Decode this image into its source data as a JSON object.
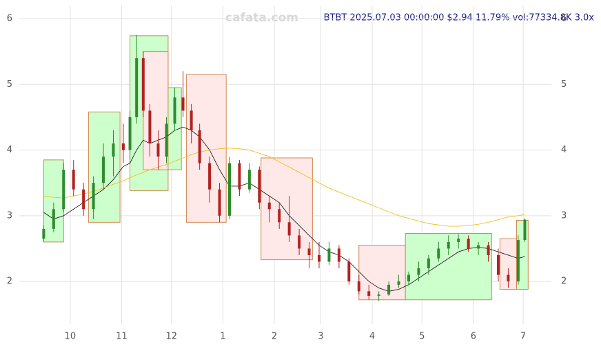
{
  "chart_data": {
    "type": "candlestick",
    "title": "BTBT 2025.07.03 00:00:00 $2.94 11.79% vol:77334.8K 3.0x",
    "watermark": "cafata.com",
    "grid": true,
    "xlim": [
      -0.7,
      320
    ],
    "xticks": [
      {
        "value": 30,
        "label": "10"
      },
      {
        "value": 61,
        "label": "11"
      },
      {
        "value": 91,
        "label": "12"
      },
      {
        "value": 122,
        "label": "1"
      },
      {
        "value": 153,
        "label": "2"
      },
      {
        "value": 181,
        "label": "3"
      },
      {
        "value": 212,
        "label": "4"
      },
      {
        "value": 242,
        "label": "5"
      },
      {
        "value": 273,
        "label": "6"
      },
      {
        "value": 303,
        "label": "7"
      }
    ],
    "ylim": [
      1.35,
      6.2
    ],
    "yticks": [
      2,
      3,
      4,
      5,
      6
    ],
    "up_color": "#2e8b2e",
    "down_color": "#b22222",
    "x": [
      14,
      20,
      26,
      32,
      38,
      44,
      50,
      56,
      62,
      66,
      70,
      74,
      78,
      83,
      88,
      93,
      98,
      103,
      108,
      114,
      120,
      126,
      132,
      138,
      144,
      150,
      156,
      162,
      168,
      174,
      180,
      186,
      192,
      198,
      204,
      210,
      216,
      222,
      228,
      234,
      240,
      246,
      252,
      258,
      264,
      270,
      276,
      282,
      288,
      294,
      300,
      304
    ],
    "open": [
      2.65,
      2.8,
      3.1,
      3.7,
      3.4,
      3.1,
      3.5,
      3.9,
      4.1,
      4.0,
      4.5,
      5.4,
      4.6,
      4.1,
      3.9,
      4.4,
      4.8,
      4.6,
      4.3,
      3.8,
      3.4,
      3.0,
      3.8,
      3.4,
      3.7,
      3.2,
      3.1,
      2.9,
      2.7,
      2.5,
      2.4,
      2.3,
      2.5,
      2.3,
      2.0,
      1.85,
      1.78,
      1.8,
      1.95,
      2.0,
      2.1,
      2.2,
      2.35,
      2.5,
      2.6,
      2.65,
      2.5,
      2.55,
      2.4,
      2.1,
      2.0,
      2.63
    ],
    "high": [
      2.85,
      3.2,
      3.8,
      3.85,
      3.5,
      3.6,
      4.1,
      4.3,
      4.4,
      4.6,
      5.75,
      5.5,
      4.7,
      4.3,
      4.5,
      4.95,
      5.2,
      4.7,
      4.4,
      3.9,
      3.5,
      3.9,
      3.85,
      3.8,
      3.75,
      3.3,
      3.2,
      3.3,
      2.8,
      2.6,
      2.6,
      2.6,
      2.55,
      2.35,
      2.1,
      1.95,
      1.85,
      2.0,
      2.1,
      2.15,
      2.3,
      2.4,
      2.6,
      2.7,
      2.72,
      2.7,
      2.6,
      2.6,
      2.5,
      2.2,
      2.7,
      2.96
    ],
    "low": [
      2.6,
      2.75,
      3.05,
      3.3,
      3.0,
      2.95,
      3.4,
      3.6,
      3.8,
      3.85,
      4.4,
      4.5,
      3.9,
      3.7,
      3.8,
      4.3,
      4.5,
      4.1,
      3.7,
      3.2,
      2.9,
      2.95,
      3.3,
      3.35,
      3.1,
      2.9,
      2.8,
      2.6,
      2.4,
      2.2,
      2.2,
      2.25,
      2.2,
      1.95,
      1.8,
      1.72,
      1.7,
      1.78,
      1.9,
      1.95,
      2.0,
      2.1,
      2.3,
      2.4,
      2.5,
      2.45,
      2.4,
      2.3,
      2.0,
      1.9,
      1.95,
      2.6
    ],
    "close": [
      2.8,
      3.1,
      3.7,
      3.4,
      3.1,
      3.5,
      3.9,
      4.1,
      4.0,
      4.5,
      5.4,
      4.6,
      4.1,
      3.9,
      4.4,
      4.8,
      4.6,
      4.3,
      3.8,
      3.4,
      3.0,
      3.8,
      3.4,
      3.7,
      3.2,
      3.1,
      2.9,
      2.7,
      2.5,
      2.4,
      2.3,
      2.5,
      2.3,
      2.0,
      1.85,
      1.78,
      1.8,
      1.95,
      2.0,
      2.1,
      2.2,
      2.35,
      2.5,
      2.6,
      2.65,
      2.5,
      2.55,
      2.4,
      2.1,
      2.0,
      2.63,
      2.94
    ],
    "lines": [
      {
        "color": "#222222",
        "values": [
          3.05,
          2.95,
          3.0,
          3.1,
          3.2,
          3.3,
          3.4,
          3.55,
          3.75,
          3.8,
          4.0,
          4.15,
          4.1,
          4.15,
          4.2,
          4.3,
          4.35,
          4.3,
          4.2,
          4.0,
          3.7,
          3.45,
          3.45,
          3.5,
          3.4,
          3.3,
          3.2,
          3.0,
          2.85,
          2.7,
          2.55,
          2.45,
          2.4,
          2.3,
          2.15,
          2.0,
          1.9,
          1.85,
          1.88,
          1.95,
          2.05,
          2.15,
          2.25,
          2.35,
          2.45,
          2.5,
          2.52,
          2.5,
          2.45,
          2.4,
          2.35,
          2.38
        ]
      },
      {
        "color": "#f0c020",
        "values": [
          3.3,
          3.28,
          3.27,
          3.3,
          3.33,
          3.37,
          3.42,
          3.48,
          3.53,
          3.58,
          3.62,
          3.66,
          3.7,
          3.74,
          3.78,
          3.83,
          3.88,
          3.93,
          3.97,
          4.0,
          4.02,
          4.03,
          4.02,
          4.0,
          3.95,
          3.9,
          3.82,
          3.74,
          3.66,
          3.58,
          3.5,
          3.42,
          3.36,
          3.3,
          3.24,
          3.18,
          3.12,
          3.06,
          3.0,
          2.96,
          2.92,
          2.88,
          2.86,
          2.84,
          2.84,
          2.85,
          2.87,
          2.9,
          2.94,
          2.98,
          3.0,
          3.02
        ]
      }
    ],
    "zones": [
      {
        "x0": 14,
        "x1": 26,
        "y0": 2.6,
        "y1": 3.85,
        "color": "#ccffcc"
      },
      {
        "x0": 41,
        "x1": 60,
        "y0": 2.9,
        "y1": 4.58,
        "color": "#ccffcc"
      },
      {
        "x0": 66,
        "x1": 89,
        "y0": 3.38,
        "y1": 5.74,
        "color": "#ccffcc"
      },
      {
        "x0": 74,
        "x1": 89,
        "y0": 3.7,
        "y1": 5.5,
        "color": "#ffe8e8"
      },
      {
        "x0": 89,
        "x1": 97,
        "y0": 3.7,
        "y1": 4.95,
        "color": "#ccffcc"
      },
      {
        "x0": 100,
        "x1": 124,
        "y0": 2.9,
        "y1": 5.15,
        "color": "#ffe8e8"
      },
      {
        "x0": 145,
        "x1": 176,
        "y0": 2.33,
        "y1": 3.88,
        "color": "#ffe8e8"
      },
      {
        "x0": 204,
        "x1": 232,
        "y0": 1.72,
        "y1": 2.55,
        "color": "#ffe8e8"
      },
      {
        "x0": 232,
        "x1": 284,
        "y0": 1.72,
        "y1": 2.73,
        "color": "#ccffcc"
      },
      {
        "x0": 289,
        "x1": 299,
        "y0": 1.88,
        "y1": 2.65,
        "color": "#ffe8e8"
      },
      {
        "x0": 299,
        "x1": 306,
        "y0": 1.88,
        "y1": 2.93,
        "color": "#ccffcc"
      }
    ]
  }
}
